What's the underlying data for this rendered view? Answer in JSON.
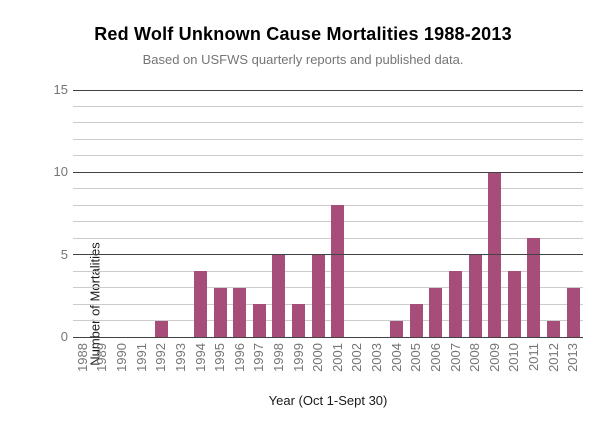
{
  "chart_data": {
    "type": "bar",
    "title": "Red Wolf Unknown Cause Mortalities 1988-2013",
    "subtitle": "Based on USFWS quarterly reports and published data.",
    "xlabel": "Year (Oct 1-Sept 30)",
    "ylabel": "Number of Mortalities",
    "categories": [
      "1988",
      "1989",
      "1990",
      "1991",
      "1992",
      "1993",
      "1994",
      "1995",
      "1996",
      "1997",
      "1998",
      "1999",
      "2000",
      "2001",
      "2002",
      "2003",
      "2004",
      "2005",
      "2006",
      "2007",
      "2008",
      "2009",
      "2010",
      "2011",
      "2012",
      "2013"
    ],
    "values": [
      0,
      0,
      0,
      0,
      1,
      0,
      4,
      3,
      3,
      2,
      5,
      2,
      5,
      8,
      0,
      0,
      1,
      2,
      3,
      4,
      5,
      10,
      4,
      6,
      1,
      3
    ],
    "ylim": [
      0,
      15
    ],
    "yticks": [
      0,
      5,
      10,
      15
    ],
    "minor_gridline_step": 1,
    "grid": true,
    "legend_position": "none",
    "colors": {
      "bar": "#A64D79",
      "major_gridline": "#424242",
      "minor_gridline": "#cccccc",
      "tick_label": "#757575",
      "axis_title": "#1a1a1a",
      "title": "#000000",
      "subtitle": "#757575"
    }
  }
}
